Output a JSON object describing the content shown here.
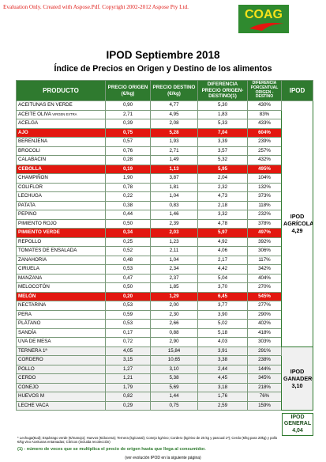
{
  "watermark": "Evaluation Only. Created with Aspose.Pdf. Copyright 2002-2012 Aspose Pty Ltd.",
  "logo": {
    "text": "COAG"
  },
  "header": {
    "title": "IPOD Septiembre 2018",
    "subtitle": "Índice de Precios en Origen y Destino de los alimentos"
  },
  "table": {
    "columns": [
      "PRODUCTO",
      "PRECIO ORIGEN (€/kg)",
      "PRECIO DESTINO (€/kg)",
      "DIFERENCIA PRECIO ORIGEN-DESTINO(1)",
      "DIFERENCIA PORCENTUAL ORIGEN - DESTINO",
      "IPOD"
    ],
    "sections": [
      {
        "ipod": {
          "name": "IPOD AGRÍCOLA",
          "value": "4,29"
        },
        "shaded": false,
        "rows": [
          {
            "product": "ACEITUNAS EN VERDE",
            "cells": [
              "0,90",
              "4,77",
              "5,30",
              "430%"
            ]
          },
          {
            "product": "ACEITE OLIVA",
            "qualifier": "VIRGEN EXTRA",
            "cells": [
              "2,71",
              "4,95",
              "1,83",
              "83%"
            ]
          },
          {
            "product": "ACELGA",
            "cells": [
              "0,39",
              "2,08",
              "5,33",
              "433%"
            ]
          },
          {
            "product": "AJO",
            "cells": [
              "0,75",
              "5,28",
              "7,04",
              "604%"
            ],
            "highlight": true
          },
          {
            "product": "BERENJENA",
            "cells": [
              "0,57",
              "1,93",
              "3,39",
              "239%"
            ]
          },
          {
            "product": "BROCOLI",
            "cells": [
              "0,76",
              "2,71",
              "3,57",
              "257%"
            ]
          },
          {
            "product": "CALABACIN",
            "cells": [
              "0,28",
              "1,49",
              "5,32",
              "432%"
            ]
          },
          {
            "product": "CEBOLLA",
            "cells": [
              "0,19",
              "1,13",
              "5,95",
              "495%"
            ],
            "highlight": true
          },
          {
            "product": "CHAMPIÑON",
            "cells": [
              "1,90",
              "3,87",
              "2,04",
              "104%"
            ]
          },
          {
            "product": "COLIFLOR",
            "cells": [
              "0,78",
              "1,81",
              "2,32",
              "132%"
            ]
          },
          {
            "product": "LECHUGA",
            "cells": [
              "0,22",
              "1,04",
              "4,73",
              "373%"
            ]
          },
          {
            "product": "PATATA",
            "cells": [
              "0,38",
              "0,83",
              "2,18",
              "118%"
            ]
          },
          {
            "product": "PEPINO",
            "cells": [
              "0,44",
              "1,46",
              "3,32",
              "232%"
            ]
          },
          {
            "product": "PIMIENTO ROJO",
            "cells": [
              "0,50",
              "2,39",
              "4,78",
              "378%"
            ]
          },
          {
            "product": "PIMIENTO VERDE",
            "cells": [
              "0,34",
              "2,03",
              "5,97",
              "497%"
            ],
            "highlight": true
          },
          {
            "product": "REPOLLO",
            "cells": [
              "0,25",
              "1,23",
              "4,92",
              "392%"
            ]
          },
          {
            "product": "TOMATES DE ENSALADA",
            "cells": [
              "0,52",
              "2,11",
              "4,06",
              "306%"
            ]
          },
          {
            "product": "ZANAHORIA",
            "cells": [
              "0,48",
              "1,04",
              "2,17",
              "117%"
            ]
          },
          {
            "product": "CIRUELA",
            "cells": [
              "0,53",
              "2,34",
              "4,42",
              "342%"
            ]
          },
          {
            "product": "MANZANA",
            "cells": [
              "0,47",
              "2,37",
              "5,04",
              "404%"
            ]
          },
          {
            "product": "MELOCOTÓN",
            "cells": [
              "0,50",
              "1,85",
              "3,70",
              "270%"
            ]
          },
          {
            "product": "MELÓN",
            "cells": [
              "0,20",
              "1,29",
              "6,45",
              "545%"
            ],
            "highlight": true
          },
          {
            "product": "NECTARINA",
            "cells": [
              "0,53",
              "2,00",
              "3,77",
              "277%"
            ]
          },
          {
            "product": "PERA",
            "cells": [
              "0,59",
              "2,30",
              "3,90",
              "290%"
            ]
          },
          {
            "product": "PLÁTANO",
            "cells": [
              "0,53",
              "2,66",
              "5,02",
              "402%"
            ]
          },
          {
            "product": "SANDÍA",
            "cells": [
              "0,17",
              "0,88",
              "5,18",
              "418%"
            ]
          },
          {
            "product": "UVA DE MESA",
            "cells": [
              "0,72",
              "2,90",
              "4,03",
              "303%"
            ]
          }
        ]
      },
      {
        "ipod": {
          "name": "IPOD GANADERO",
          "value": "3,10"
        },
        "shaded": true,
        "rows": [
          {
            "product": "TERNERA 1ª",
            "cells": [
              "4,05",
              "15,84",
              "3,91",
              "291%"
            ]
          },
          {
            "product": "CORDERO",
            "cells": [
              "3,15",
              "10,65",
              "3,38",
              "238%"
            ]
          },
          {
            "product": "POLLO",
            "cells": [
              "1,27",
              "3,10",
              "2,44",
              "144%"
            ]
          },
          {
            "product": "CERDO",
            "cells": [
              "1,21",
              "5,38",
              "4,45",
              "345%"
            ]
          },
          {
            "product": "CONEJO",
            "cells": [
              "1,79",
              "5,69",
              "3,18",
              "218%"
            ]
          },
          {
            "product": "HUEVOS M",
            "cells": [
              "0,82",
              "1,44",
              "1,76",
              "76%"
            ]
          },
          {
            "product": "LECHE VACA",
            "cells": [
              "0,29",
              "0,75",
              "2,59",
              "159%"
            ]
          }
        ]
      }
    ],
    "general": {
      "name": "IPOD GENERAL",
      "value": "4,04"
    }
  },
  "footnotes": {
    "units": "* Lechuga(€ud); Espárrago verde (€/manojo); Huevos (€/docena); Ternera (kg/canal); Conejo kg/vivo; Cordero (kg/vivo de 25 kg y pascual 1ª); Cerdo (€/kg para 20kg) y pollo €/kg vivo Aceitunas entamadas; Cítricos (incluida recolección)",
    "note1": "(1) - número de veces que se multiplica el precio de origen hasta que llega al consumidor.",
    "next": "(ver evolución IPOD en la siguiente página)"
  }
}
